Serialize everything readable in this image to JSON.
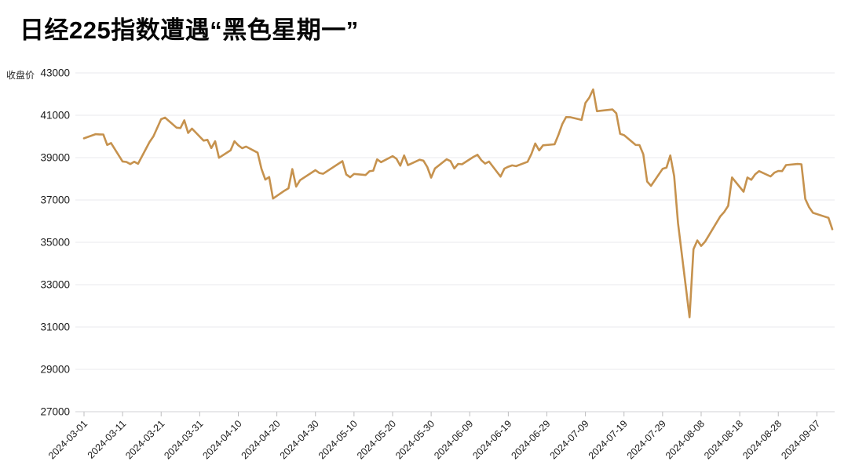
{
  "header": {
    "title": "日经225指数遭遇“黑色星期一”"
  },
  "chart_data": {
    "type": "line",
    "title": "日经225指数遭遇“黑色星期一”",
    "ylabel": "收盘价",
    "xlabel": "",
    "ylim": [
      27000,
      43000
    ],
    "y_ticks": [
      43000,
      41000,
      39000,
      37000,
      35000,
      33000,
      31000,
      29000,
      27000
    ],
    "x_tick_labels": [
      "2024-03-01",
      "2024-03-11",
      "2024-03-21",
      "2024-03-31",
      "2024-04-10",
      "2024-04-20",
      "2024-04-30",
      "2024-05-10",
      "2024-05-20",
      "2024-05-30",
      "2024-06-09",
      "2024-06-19",
      "2024-06-29",
      "2024-07-09",
      "2024-07-19",
      "2024-07-29",
      "2024-08-08",
      "2024-08-18",
      "2024-08-28",
      "2024-09-07"
    ],
    "grid": true,
    "legend_position": "none",
    "line_color": "#C6924E",
    "series": [
      {
        "name": "收盘价",
        "dates": [
          "2024-03-01",
          "2024-03-04",
          "2024-03-05",
          "2024-03-06",
          "2024-03-07",
          "2024-03-08",
          "2024-03-11",
          "2024-03-12",
          "2024-03-13",
          "2024-03-14",
          "2024-03-15",
          "2024-03-18",
          "2024-03-19",
          "2024-03-21",
          "2024-03-22",
          "2024-03-25",
          "2024-03-26",
          "2024-03-27",
          "2024-03-28",
          "2024-03-29",
          "2024-04-01",
          "2024-04-02",
          "2024-04-03",
          "2024-04-04",
          "2024-04-05",
          "2024-04-08",
          "2024-04-09",
          "2024-04-10",
          "2024-04-11",
          "2024-04-12",
          "2024-04-15",
          "2024-04-16",
          "2024-04-17",
          "2024-04-18",
          "2024-04-19",
          "2024-04-22",
          "2024-04-23",
          "2024-04-24",
          "2024-04-25",
          "2024-04-26",
          "2024-04-30",
          "2024-05-01",
          "2024-05-02",
          "2024-05-07",
          "2024-05-08",
          "2024-05-09",
          "2024-05-10",
          "2024-05-13",
          "2024-05-14",
          "2024-05-15",
          "2024-05-16",
          "2024-05-17",
          "2024-05-20",
          "2024-05-21",
          "2024-05-22",
          "2024-05-23",
          "2024-05-24",
          "2024-05-27",
          "2024-05-28",
          "2024-05-29",
          "2024-05-30",
          "2024-05-31",
          "2024-06-03",
          "2024-06-04",
          "2024-06-05",
          "2024-06-06",
          "2024-06-07",
          "2024-06-10",
          "2024-06-11",
          "2024-06-12",
          "2024-06-13",
          "2024-06-14",
          "2024-06-17",
          "2024-06-18",
          "2024-06-19",
          "2024-06-20",
          "2024-06-21",
          "2024-06-24",
          "2024-06-25",
          "2024-06-26",
          "2024-06-27",
          "2024-06-28",
          "2024-07-01",
          "2024-07-02",
          "2024-07-03",
          "2024-07-04",
          "2024-07-05",
          "2024-07-08",
          "2024-07-09",
          "2024-07-10",
          "2024-07-11",
          "2024-07-12",
          "2024-07-16",
          "2024-07-17",
          "2024-07-18",
          "2024-07-19",
          "2024-07-22",
          "2024-07-23",
          "2024-07-24",
          "2024-07-25",
          "2024-07-26",
          "2024-07-29",
          "2024-07-30",
          "2024-07-31",
          "2024-08-01",
          "2024-08-02",
          "2024-08-05",
          "2024-08-06",
          "2024-08-07",
          "2024-08-08",
          "2024-08-09",
          "2024-08-13",
          "2024-08-14",
          "2024-08-15",
          "2024-08-16",
          "2024-08-19",
          "2024-08-20",
          "2024-08-21",
          "2024-08-22",
          "2024-08-23",
          "2024-08-26",
          "2024-08-27",
          "2024-08-28",
          "2024-08-29",
          "2024-08-30",
          "2024-09-02",
          "2024-09-03",
          "2024-09-04",
          "2024-09-05",
          "2024-09-06",
          "2024-09-09",
          "2024-09-10",
          "2024-09-11"
        ],
        "values": [
          39911,
          40109,
          40098,
          40091,
          39599,
          39689,
          38820,
          38798,
          38696,
          38807,
          38708,
          39740,
          40004,
          40816,
          40888,
          40414,
          40398,
          40763,
          40168,
          40369,
          39803,
          39839,
          39452,
          39773,
          38992,
          39347,
          39773,
          39582,
          39443,
          39524,
          39233,
          38471,
          37962,
          38080,
          37068,
          37439,
          37552,
          38460,
          37628,
          37935,
          38406,
          38274,
          38236,
          38835,
          38202,
          38074,
          38229,
          38179,
          38356,
          38386,
          38920,
          38787,
          39070,
          38947,
          38617,
          39103,
          38646,
          38900,
          38855,
          38557,
          38054,
          38488,
          38923,
          38837,
          38490,
          38704,
          38684,
          39038,
          39135,
          38877,
          38720,
          38815,
          38102,
          38482,
          38571,
          38633,
          38596,
          38805,
          39173,
          39667,
          39342,
          39583,
          39631,
          40075,
          40581,
          40914,
          40912,
          40781,
          41580,
          41832,
          42224,
          41191,
          41275,
          41098,
          40126,
          40064,
          39599,
          39594,
          39155,
          37870,
          37667,
          38469,
          38526,
          39102,
          38126,
          35910,
          31458,
          34675,
          35090,
          34831,
          35025,
          36233,
          36442,
          36727,
          38063,
          37389,
          38063,
          37952,
          38211,
          38364,
          38110,
          38289,
          38372,
          38363,
          38648,
          38701,
          38686,
          37048,
          36657,
          36391,
          36216,
          36159,
          35620
        ]
      }
    ]
  },
  "style": {
    "grid_color": "#eaeaec",
    "axis_line_color": "#d2d2d4",
    "tick_color": "#bdbdbf",
    "tick_label_color": "#1a1a1a",
    "title_color": "#050505"
  }
}
